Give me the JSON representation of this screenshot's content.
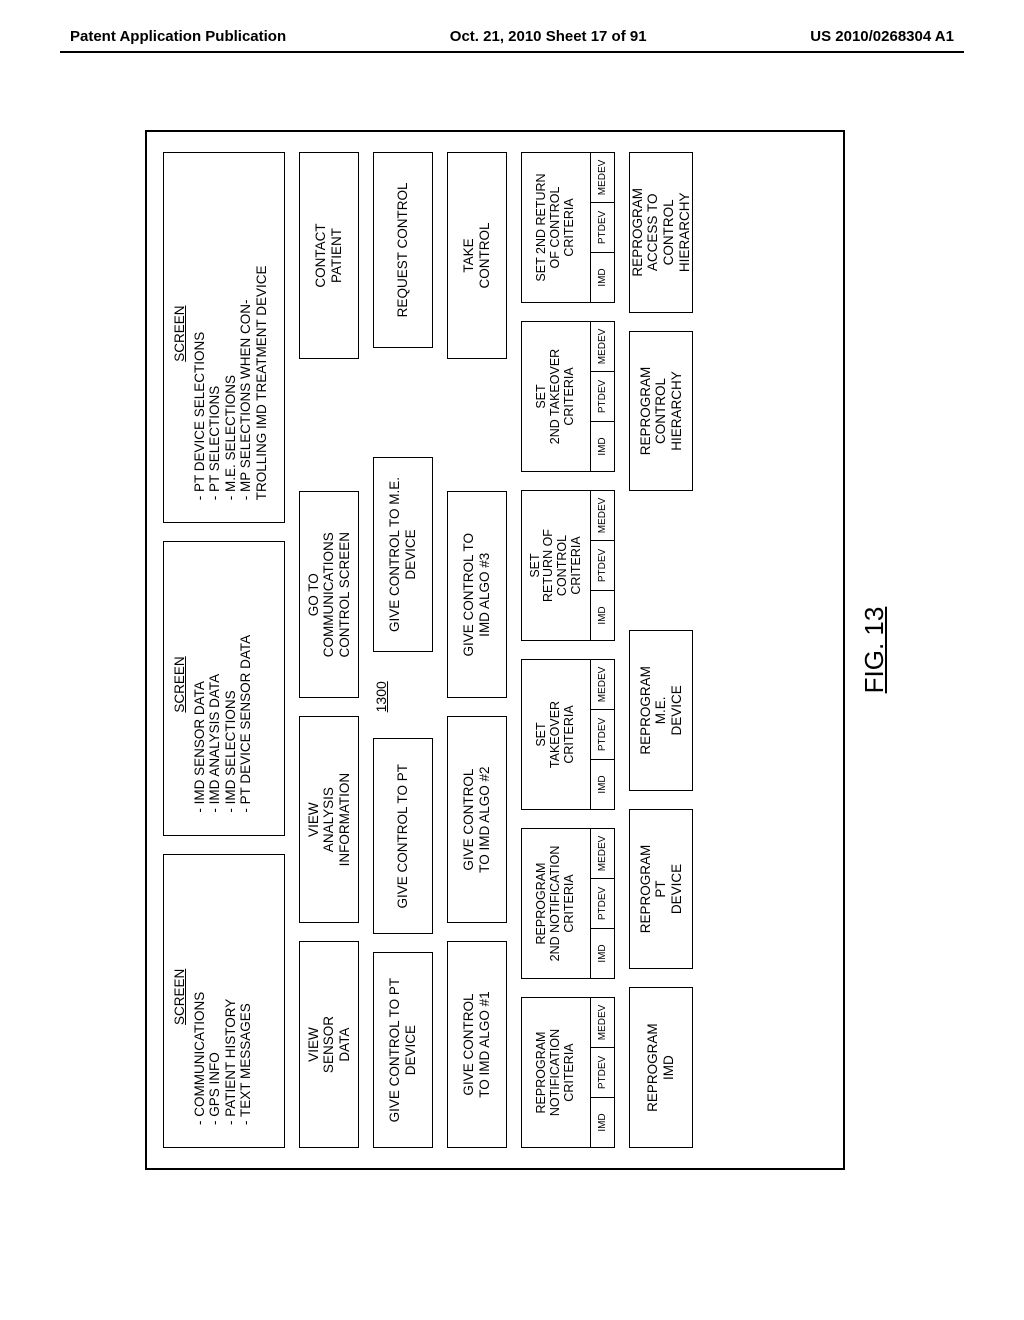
{
  "header": {
    "left": "Patent Application Publication",
    "center": "Oct. 21, 2010  Sheet 17 of 91",
    "right": "US 2010/0268304 A1"
  },
  "figure_label": "FIG. 13",
  "reference_number": "1300",
  "screens": {
    "s1": {
      "title": "SCREEN",
      "items": [
        "COMMUNICATIONS",
        "GPS INFO",
        "PATIENT HISTORY",
        "TEXT MESSAGES"
      ]
    },
    "s2": {
      "title": "SCREEN",
      "items": [
        "IMD SENSOR DATA",
        "IMD ANALYSIS DATA",
        "IMD SELECTIONS",
        "PT DEVICE SENSOR DATA"
      ]
    },
    "s3": {
      "title": "SCREEN",
      "items": [
        "PT DEVICE SELECTIONS",
        "PT SELECTIONS",
        "M.E. SELECTIONS",
        "MP SELECTIONS WHEN CON-\nTROLLING  IMD TREATMENT DEVICE"
      ]
    }
  },
  "r2": {
    "b1": "VIEW\nSENSOR\nDATA",
    "b2": "VIEW\nANALYSIS\nINFORMATION",
    "b3": "GO TO\nCOMMUNICATIONS\nCONTROL SCREEN",
    "b4": "CONTACT\nPATIENT"
  },
  "r3": {
    "b1": "GIVE CONTROL\nTO PT DEVICE",
    "b2": "GIVE CONTROL\nTO PT",
    "b3": "GIVE CONTROL\nTO M.E. DEVICE",
    "b4": "REQUEST\nCONTROL"
  },
  "r4": {
    "b1": "GIVE CONTROL\nTO IMD  ALGO #1",
    "b2": "GIVE CONTROL\nTO IMD ALGO #2",
    "b3": "GIVE CONTROL TO\nIMD ALGO #3",
    "b4": "TAKE\nCONTROL"
  },
  "r5": {
    "b1": "REPROGRAM\nNOTIFICATION\nCRITERIA",
    "b2": "REPROGRAM\n2ND NOTIFICATION\nCRITERIA",
    "b3": "SET\nTAKEOVER\nCRITERIA",
    "b4": "SET\nRETURN OF CONTROL\nCRITERIA",
    "b5": "SET\n2ND TAKEOVER\nCRITERIA",
    "b6": "SET 2ND RETURN\nOF CONTROL\nCRITERIA"
  },
  "mini_labels": [
    "IMD",
    "PTDEV",
    "MEDEV"
  ],
  "r6": {
    "b1": "REPROGRAM\nIMD",
    "b2": "REPROGRAM\nPT\nDEVICE",
    "b3": "REPROGRAM\nM.E.\nDEVICE",
    "b4": "REPROGRAM\nCONTROL\nHIERARCHY",
    "b5": "REPROGRAM\nACCESS TO\nCONTROL\nHIERARCHY"
  },
  "colors": {
    "border": "#000000",
    "bg": "#ffffff"
  }
}
